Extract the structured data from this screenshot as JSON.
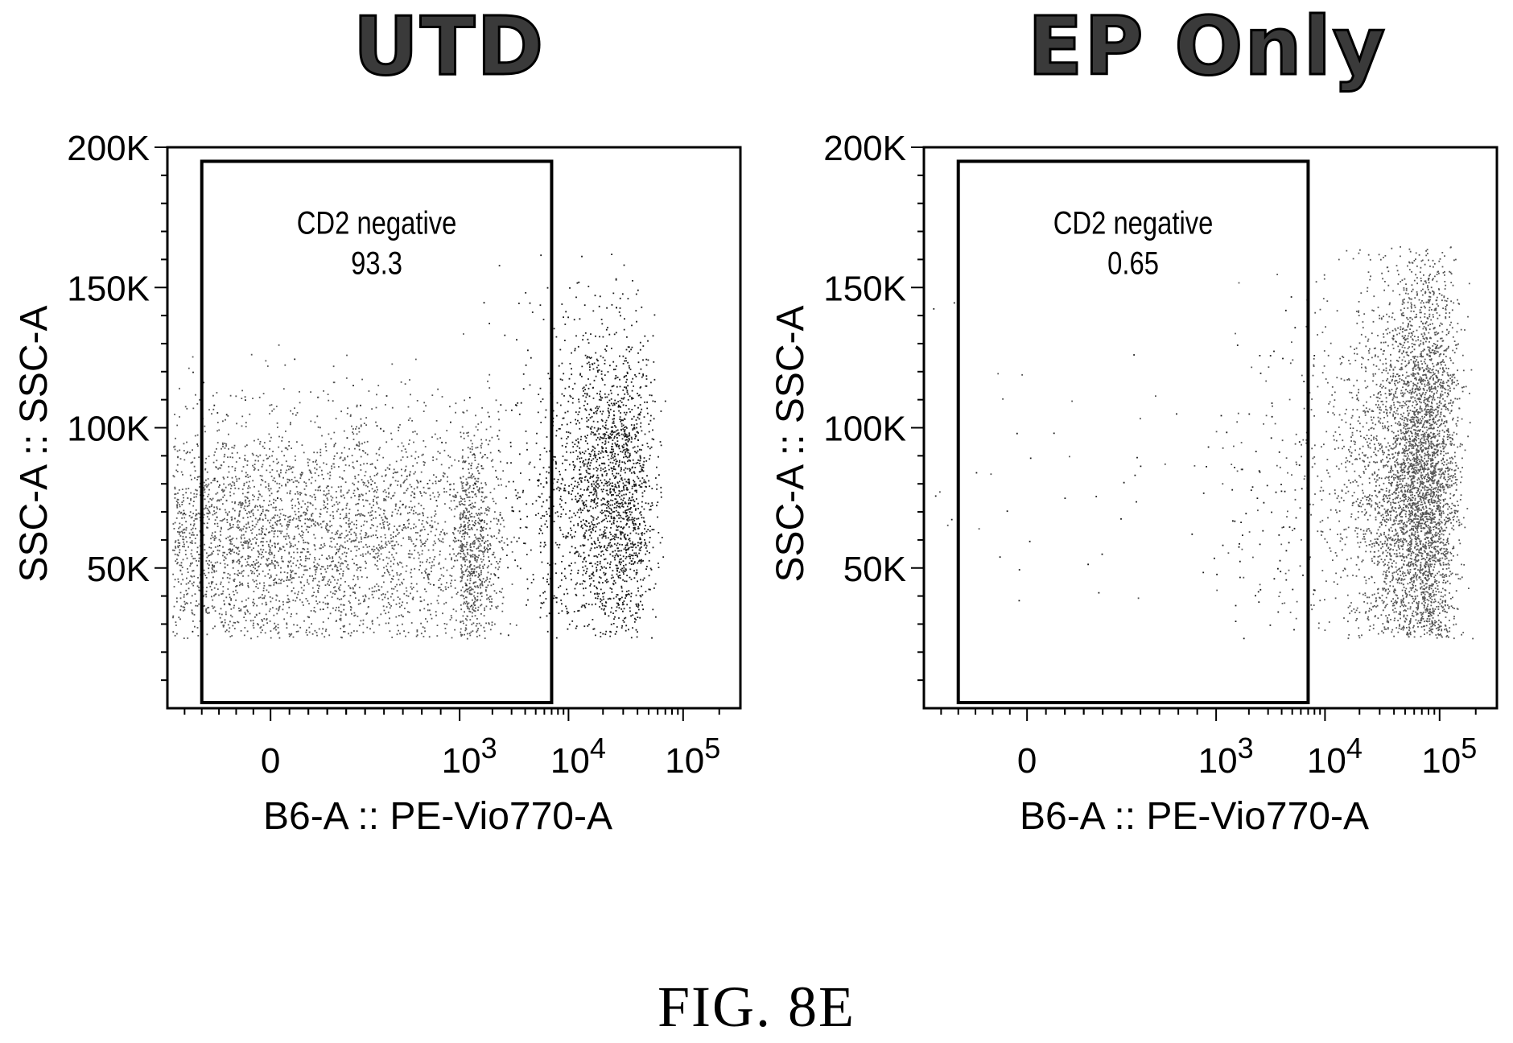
{
  "figure_caption": "FIG. 8E",
  "chart_data": [
    {
      "type": "scatter",
      "title": "UTD",
      "xlabel": "B6-A :: PE-Vio770-A",
      "ylabel": "SSC-A :: SSC-A",
      "x_scale": "biexponential",
      "x_tick_labels": [
        "0",
        "10^3",
        "10^4",
        "10^5"
      ],
      "y_tick_labels": [
        "50K",
        "100K",
        "150K",
        "200K"
      ],
      "y_ticks": [
        50000,
        100000,
        150000,
        200000
      ],
      "ylim": [
        0,
        200000
      ],
      "gate": {
        "name": "CD2 negative",
        "value": "93.3",
        "x_range": [
          -400,
          7000
        ],
        "y_range": [
          2000,
          195000
        ]
      },
      "populations": [
        {
          "x_center": 40,
          "y_center": 60000,
          "x_spread": 900,
          "y_spread": 22000,
          "density": "high"
        },
        {
          "x_center": 20000,
          "y_center": 75000,
          "x_spread": 15000,
          "y_spread": 30000,
          "density": "medium"
        }
      ]
    },
    {
      "type": "scatter",
      "title": "EP Only",
      "xlabel": "B6-A :: PE-Vio770-A",
      "ylabel": "SSC-A :: SSC-A",
      "x_scale": "biexponential",
      "x_tick_labels": [
        "0",
        "10^3",
        "10^4",
        "10^5"
      ],
      "y_tick_labels": [
        "50K",
        "100K",
        "150K",
        "200K"
      ],
      "y_ticks": [
        50000,
        100000,
        150000,
        200000
      ],
      "ylim": [
        0,
        200000
      ],
      "gate": {
        "name": "CD2 negative",
        "value": "0.65",
        "x_range": [
          -400,
          7000
        ],
        "y_range": [
          2000,
          195000
        ]
      },
      "populations": [
        {
          "x_center": 60000,
          "y_center": 80000,
          "x_spread": 35000,
          "y_spread": 40000,
          "density": "high"
        },
        {
          "x_center": 1500,
          "y_center": 75000,
          "x_spread": 3000,
          "y_spread": 30000,
          "density": "sparse"
        }
      ]
    }
  ]
}
